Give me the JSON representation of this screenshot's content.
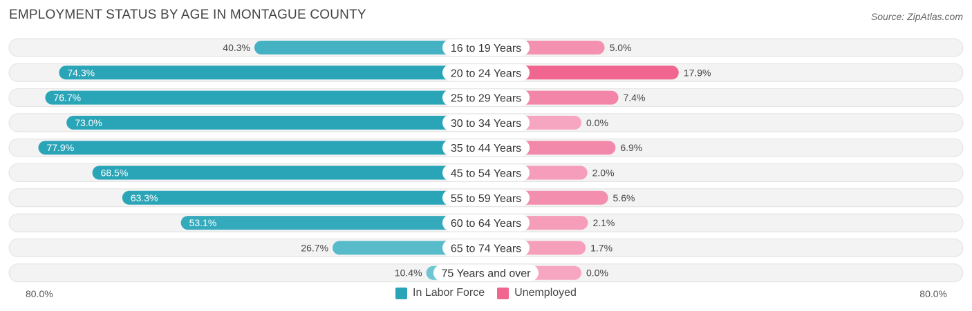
{
  "title": "EMPLOYMENT STATUS BY AGE IN MONTAGUE COUNTY",
  "source": "Source: ZipAtlas.com",
  "colors": {
    "labor_force": "#2aa5b8",
    "labor_force_light": "#6fc6d3",
    "unemployed": "#f06690",
    "unemployed_light": "#f6a6c0",
    "row_bg": "#f3f3f3",
    "row_border": "#e2e2e2"
  },
  "legend": {
    "labor_force": "In Labor Force",
    "unemployed": "Unemployed"
  },
  "axis": {
    "left_label": "80.0%",
    "right_label": "80.0%"
  },
  "chart_data": {
    "type": "bar",
    "orientation": "horizontal-diverging",
    "title": "EMPLOYMENT STATUS BY AGE IN MONTAGUE COUNTY",
    "categories": [
      "16 to 19 Years",
      "20 to 24 Years",
      "25 to 29 Years",
      "30 to 34 Years",
      "35 to 44 Years",
      "45 to 54 Years",
      "55 to 59 Years",
      "60 to 64 Years",
      "65 to 74 Years",
      "75 Years and over"
    ],
    "series": [
      {
        "name": "In Labor Force",
        "values": [
          40.3,
          74.3,
          76.7,
          73.0,
          77.9,
          68.5,
          63.3,
          53.1,
          26.7,
          10.4
        ],
        "labels": [
          "40.3%",
          "74.3%",
          "76.7%",
          "73.0%",
          "77.9%",
          "68.5%",
          "63.3%",
          "53.1%",
          "26.7%",
          "10.4%"
        ]
      },
      {
        "name": "Unemployed",
        "values": [
          5.0,
          17.9,
          7.4,
          0.0,
          6.9,
          2.0,
          5.6,
          2.1,
          1.7,
          0.0
        ],
        "labels": [
          "5.0%",
          "17.9%",
          "7.4%",
          "0.0%",
          "6.9%",
          "2.0%",
          "5.6%",
          "2.1%",
          "1.7%",
          "0.0%"
        ]
      }
    ],
    "xlim": [
      -80,
      80
    ],
    "xlabel_left": "80.0%",
    "xlabel_right": "80.0%",
    "legend_position": "bottom-center"
  }
}
